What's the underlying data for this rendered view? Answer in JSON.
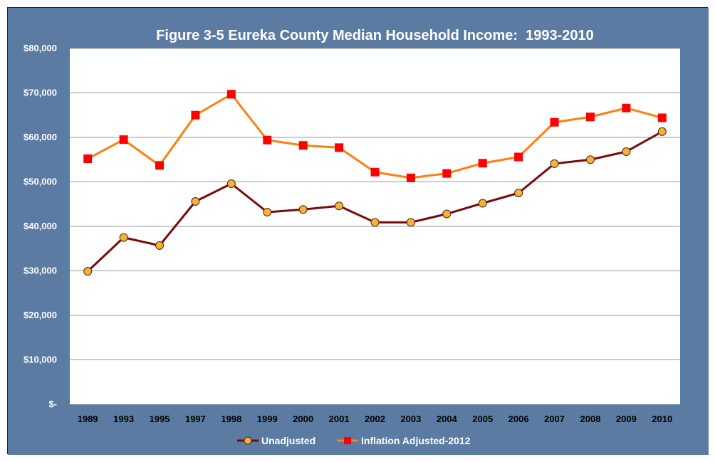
{
  "chart_data": {
    "type": "line",
    "title": "Figure 3-5 Eureka County Median Household Income:  1993-2010",
    "xlabel": "",
    "ylabel": "",
    "categories": [
      "1989",
      "1993",
      "1995",
      "1997",
      "1998",
      "1999",
      "2000",
      "2001",
      "2002",
      "2003",
      "2004",
      "2005",
      "2006",
      "2007",
      "2008",
      "2009",
      "2010"
    ],
    "ylim": [
      0,
      80000
    ],
    "y_ticks": [
      {
        "value": 0,
        "label": "$-"
      },
      {
        "value": 10000,
        "label": "$10,000"
      },
      {
        "value": 20000,
        "label": "$20,000"
      },
      {
        "value": 30000,
        "label": "$30,000"
      },
      {
        "value": 40000,
        "label": "$40,000"
      },
      {
        "value": 50000,
        "label": "$50,000"
      },
      {
        "value": 60000,
        "label": "$60,000"
      },
      {
        "value": 70000,
        "label": "$70,000"
      },
      {
        "value": 80000,
        "label": "$80,000"
      }
    ],
    "grid": true,
    "legend_position": "bottom",
    "series": [
      {
        "name": "Unadjusted",
        "color": "#7a0a0a",
        "marker": "circle",
        "marker_color": "#f5b041",
        "values": [
          29900,
          37500,
          35700,
          45600,
          49600,
          43200,
          43800,
          44600,
          40900,
          40900,
          42800,
          45200,
          47500,
          54100,
          55000,
          56800,
          61300
        ]
      },
      {
        "name": "Inflation Adjusted-2012",
        "color": "#ff7f0e",
        "marker": "square",
        "marker_color": "#ff0000",
        "values": [
          55200,
          59500,
          53700,
          65000,
          69700,
          59400,
          58200,
          57700,
          52200,
          50900,
          51900,
          54200,
          55600,
          63400,
          64600,
          66600,
          64400
        ]
      }
    ]
  },
  "colors": {
    "frame_background": "#5b7ba3",
    "plot_background": "#ffffff",
    "gridline": "#9a9a9a"
  }
}
